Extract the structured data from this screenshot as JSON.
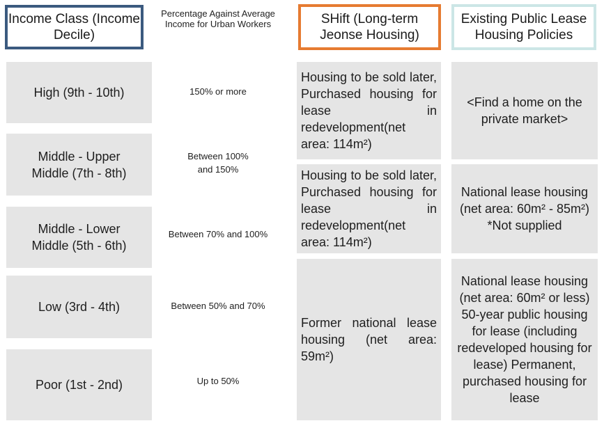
{
  "headers": {
    "income_class": "Income Class (Income Decile)",
    "percentage": "Percentage Against Average Income for Urban Workers",
    "shift": "SHift (Long-term Jeonse Housing)",
    "existing": "Existing Public Lease Housing Policies"
  },
  "income_classes": [
    {
      "label": "High (9th - 10th)",
      "percentage": "150% or more"
    },
    {
      "label": "Middle - Upper Middle (7th - 8th)",
      "percentage": "Between 100% and 150%"
    },
    {
      "label": "Middle - Lower Middle (5th - 6th)",
      "percentage": "Between 70% and 100%"
    },
    {
      "label": "Low (3rd - 4th)",
      "percentage": "Between 50% and 70%"
    },
    {
      "label": "Poor (1st - 2nd)",
      "percentage": "Up to 50%"
    }
  ],
  "shift_policies": [
    "Housing to be sold later, Purchased housing for lease in redevelopment(net area: 114m²)",
    "Housing to be sold later, Purchased housing for lease in redevelopment(net area: 114m²)",
    "Former national lease housing (net area: 59m²)"
  ],
  "existing_policies": [
    "<Find a home on the private market>",
    "National lease housing (net area: 60m² - 85m²) *Not supplied",
    "National lease housing (net area: 60m² or less) 50-year public housing for lease (including redeveloped housing for lease) Permanent, purchased housing for lease"
  ]
}
